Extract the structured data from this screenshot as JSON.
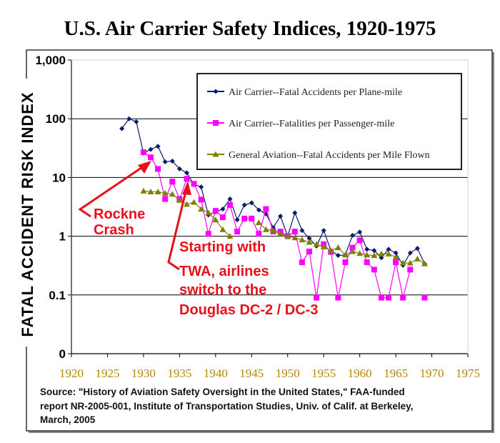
{
  "chart_data": {
    "type": "line",
    "title": "U.S. Air Carrier Safety Indices, 1920-1975",
    "xlabel": "",
    "ylabel": "FATAL ACCIDENT RISK INDEX",
    "yscale": "log",
    "ylim": [
      0.01,
      1000
    ],
    "xlim": [
      1920,
      1975
    ],
    "grid": true,
    "y_ticks": [
      {
        "value": 1000,
        "label": "1,000"
      },
      {
        "value": 100,
        "label": "100"
      },
      {
        "value": 10,
        "label": "10"
      },
      {
        "value": 1,
        "label": "1"
      },
      {
        "value": 0.1,
        "label": "0.1"
      },
      {
        "value": 0.01,
        "label": "0"
      }
    ],
    "x_ticks": [
      1920,
      1925,
      1930,
      1935,
      1940,
      1945,
      1950,
      1955,
      1960,
      1965,
      1970,
      1975
    ],
    "x_tick_labels": [
      "1920",
      "1925",
      "1930",
      "1935",
      "1940",
      "1945",
      "1950",
      "1955",
      "1960",
      "1965",
      "1970",
      "1975"
    ],
    "legend_position": "top-right",
    "series": [
      {
        "name": "Air Carrier--Fatal Accidents per Plane-mile",
        "color": "#0a1a6e",
        "marker": "diamond",
        "points": [
          [
            1927,
            68
          ],
          [
            1928,
            100
          ],
          [
            1929,
            89
          ],
          [
            1930,
            26
          ],
          [
            1931,
            30
          ],
          [
            1932,
            34
          ],
          [
            1933,
            18.5
          ],
          [
            1934,
            19
          ],
          [
            1935,
            14
          ],
          [
            1936,
            12
          ],
          [
            1937,
            7.6
          ],
          [
            1938,
            6.9
          ],
          [
            1939,
            2.3
          ],
          [
            1940,
            2.6
          ],
          [
            1941,
            2.9
          ],
          [
            1942,
            4.3
          ],
          [
            1943,
            1.9
          ],
          [
            1944,
            3.4
          ],
          [
            1945,
            3.7
          ],
          [
            1946,
            2.8
          ],
          [
            1947,
            2.4
          ],
          [
            1948,
            1.4
          ],
          [
            1949,
            2.2
          ],
          [
            1950,
            1.0
          ],
          [
            1951,
            2.5
          ],
          [
            1952,
            1.25
          ],
          [
            1953,
            0.92
          ],
          [
            1954,
            0.68
          ],
          [
            1955,
            1.25
          ],
          [
            1956,
            0.57
          ],
          [
            1957,
            0.47
          ],
          [
            1958,
            0.48
          ],
          [
            1959,
            1.03
          ],
          [
            1960,
            1.18
          ],
          [
            1961,
            0.6
          ],
          [
            1962,
            0.57
          ],
          [
            1963,
            0.43
          ],
          [
            1964,
            0.6
          ],
          [
            1965,
            0.52
          ],
          [
            1966,
            0.32
          ],
          [
            1967,
            0.52
          ],
          [
            1968,
            0.62
          ],
          [
            1969,
            0.34
          ]
        ]
      },
      {
        "name": "Air Carrier--Fatalities per Passenger-mile",
        "color": "#ff00ff",
        "marker": "square",
        "points": [
          [
            1930,
            27
          ],
          [
            1931,
            22
          ],
          [
            1932,
            14
          ],
          [
            1933,
            4.3
          ],
          [
            1934,
            8.5
          ],
          [
            1935,
            4.3
          ],
          [
            1936,
            9.5
          ],
          [
            1937,
            7.8
          ],
          [
            1938,
            4.2
          ],
          [
            1939,
            1.1
          ],
          [
            1940,
            2.7
          ],
          [
            1941,
            2.1
          ],
          [
            1942,
            3.4
          ],
          [
            1943,
            1.2
          ],
          [
            1944,
            2.0
          ],
          [
            1945,
            2.0
          ],
          [
            1946,
            1.1
          ],
          [
            1947,
            2.9
          ],
          [
            1948,
            1.2
          ],
          [
            1949,
            1.2
          ],
          [
            1950,
            1.0
          ],
          [
            1951,
            1.2
          ],
          [
            1952,
            0.36
          ],
          [
            1953,
            0.55
          ],
          [
            1954,
            0.09
          ],
          [
            1955,
            0.73
          ],
          [
            1956,
            0.54
          ],
          [
            1957,
            0.09
          ],
          [
            1958,
            0.36
          ],
          [
            1959,
            0.64
          ],
          [
            1960,
            0.85
          ],
          [
            1961,
            0.36
          ],
          [
            1962,
            0.27
          ],
          [
            1963,
            0.09
          ],
          [
            1964,
            0.09
          ],
          [
            1965,
            0.36
          ],
          [
            1966,
            0.09
          ],
          [
            1967,
            0.27
          ],
          null,
          [
            1969,
            0.09
          ]
        ]
      },
      {
        "name": "General Aviation--Fatal Accidents per Mile Flown",
        "color": "#808000",
        "marker": "triangle",
        "points": [
          [
            1930,
            5.9
          ],
          [
            1931,
            5.7
          ],
          [
            1932,
            5.7
          ],
          [
            1933,
            5.4
          ],
          [
            1934,
            5.2
          ],
          [
            1935,
            4.1
          ],
          [
            1936,
            3.5
          ],
          [
            1937,
            3.8
          ],
          [
            1938,
            2.9
          ],
          [
            1939,
            2.5
          ],
          [
            1940,
            1.9
          ],
          [
            1941,
            1.3
          ],
          [
            1942,
            1.0
          ],
          null,
          [
            1946,
            1.7
          ],
          [
            1947,
            1.3
          ],
          [
            1948,
            1.25
          ],
          [
            1949,
            1.1
          ],
          [
            1950,
            1.0
          ],
          [
            1951,
            0.94
          ],
          [
            1952,
            0.87
          ],
          [
            1953,
            0.79
          ],
          [
            1954,
            0.73
          ],
          [
            1955,
            0.66
          ],
          [
            1956,
            0.57
          ],
          [
            1957,
            0.64
          ],
          [
            1958,
            0.48
          ],
          [
            1959,
            0.55
          ],
          [
            1960,
            0.51
          ],
          [
            1961,
            0.48
          ],
          [
            1962,
            0.47
          ],
          [
            1963,
            0.5
          ],
          [
            1964,
            0.5
          ],
          [
            1965,
            0.44
          ],
          [
            1966,
            0.35
          ],
          [
            1967,
            0.35
          ],
          [
            1968,
            0.41
          ],
          [
            1969,
            0.34
          ]
        ]
      }
    ],
    "annotations": [
      {
        "lines": [
          "Rockne",
          "Crash"
        ],
        "color": "#e8101a",
        "points_to": [
          1931,
          22
        ]
      },
      {
        "lines": [
          "Starting with",
          "TWA, airlines",
          "switch to the",
          "Douglas DC-2 / DC-3"
        ],
        "color": "#e8101a",
        "points_to": [
          1936,
          9.5
        ]
      }
    ],
    "source_note": [
      "Source:  \"History of Aviation Safety Oversight in the United States,\" FAA-funded",
      "report NR-2005-001, Institute of Transportation Studies, Univ. of Calif. at Berkeley,",
      "March, 2005"
    ]
  }
}
